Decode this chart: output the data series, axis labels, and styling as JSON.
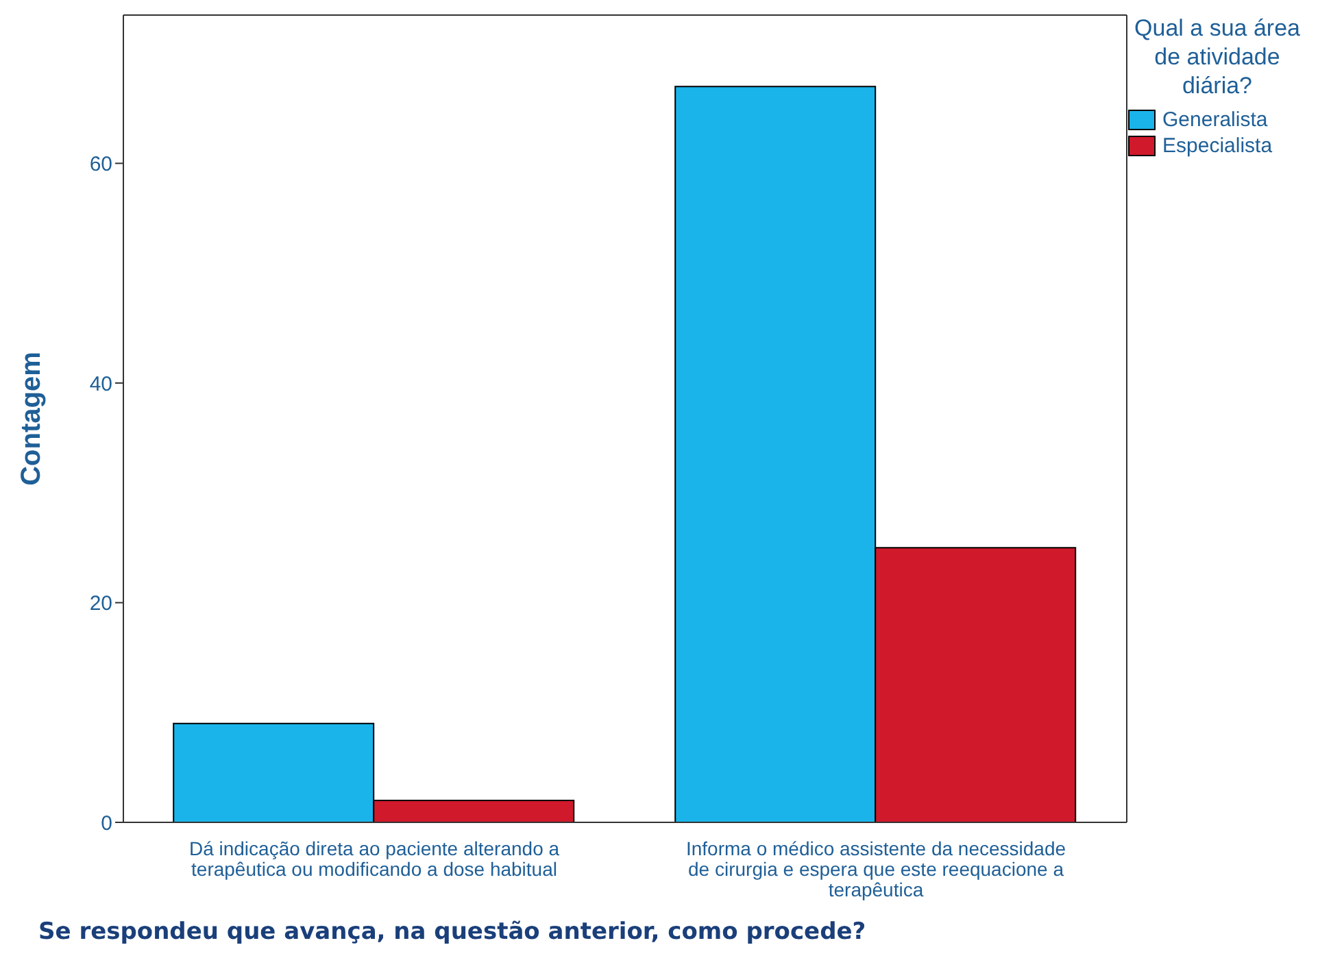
{
  "chart_data": {
    "type": "bar",
    "xlabel": "Se respondeu que avança, na questão anterior, como procede?",
    "ylabel": "Contagem",
    "legend_title": "Qual a sua área de atividade diária?",
    "categories": [
      "Dá indicação direta ao paciente alterando a terapêutica ou modificando a dose habitual",
      "Informa o médico assistente da necessidade de cirurgia e espera que este reequacione a terapêutica"
    ],
    "series": [
      {
        "name": "Generalista",
        "color": "#1ab4ea",
        "values": [
          9,
          67
        ]
      },
      {
        "name": "Especialista",
        "color": "#d0192b",
        "values": [
          2,
          25
        ]
      }
    ],
    "ylim": [
      0,
      73.5
    ],
    "yticks": [
      0,
      20,
      40,
      60
    ],
    "legend": "top right"
  }
}
